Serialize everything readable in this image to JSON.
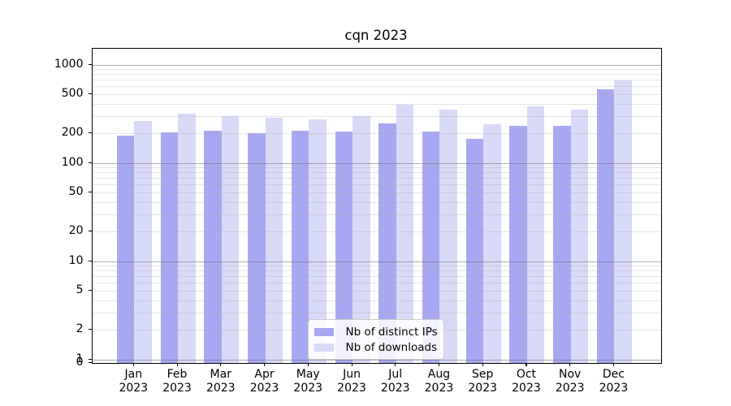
{
  "title": "cqn 2023",
  "legend": {
    "ips_label": "Nb of distinct IPs",
    "downloads_label": "Nb of downloads"
  },
  "colors": {
    "ips": "#a8a8f2",
    "downloads": "#d9d9f8",
    "grid_major": "#6e6e6e",
    "grid_minor": "#e6e6e6"
  },
  "chart_data": {
    "type": "bar",
    "title": "cqn 2023",
    "categories": [
      "Jan",
      "Feb",
      "Mar",
      "Apr",
      "May",
      "Jun",
      "Jul",
      "Aug",
      "Sep",
      "Oct",
      "Nov",
      "Dec"
    ],
    "year_label": "2023",
    "series": [
      {
        "name": "Nb of distinct IPs",
        "color": "#a8a8f2",
        "values": [
          190,
          207,
          213,
          201,
          215,
          209,
          255,
          210,
          177,
          238,
          239,
          560
        ]
      },
      {
        "name": "Nb of downloads",
        "color": "#d9d9f8",
        "values": [
          270,
          317,
          300,
          292,
          279,
          300,
          394,
          351,
          248,
          379,
          349,
          700
        ]
      }
    ],
    "yscale": "symlog",
    "y_tick_labels": [
      1000,
      500,
      200,
      100,
      50,
      20,
      10,
      5,
      2,
      1,
      0
    ],
    "ylim": [
      0,
      1460
    ],
    "grid": true,
    "legend_position": "lower center"
  }
}
